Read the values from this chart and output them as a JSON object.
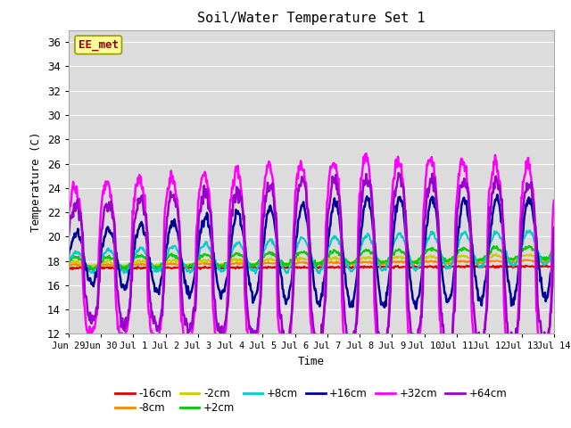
{
  "title": "Soil/Water Temperature Set 1",
  "xlabel": "Time",
  "ylabel": "Temperature (C)",
  "ylim": [
    12,
    37
  ],
  "yticks": [
    12,
    14,
    16,
    18,
    20,
    22,
    24,
    26,
    28,
    30,
    32,
    34,
    36
  ],
  "bg_color": "#dcdcdc",
  "fig_color": "#ffffff",
  "annotation_text": "EE_met",
  "annotation_bg": "#ffff99",
  "annotation_border": "#999900",
  "annotation_text_color": "#990000",
  "series_colors": {
    "-16cm": "#dd0000",
    "-8cm": "#ff8800",
    "-2cm": "#cccc00",
    "+2cm": "#00cc00",
    "+8cm": "#00cccc",
    "+16cm": "#000099",
    "+32cm": "#ff00ff",
    "+64cm": "#9900cc"
  },
  "series_lw": {
    "-16cm": 1.5,
    "-8cm": 1.5,
    "-2cm": 1.5,
    "+2cm": 1.5,
    "+8cm": 1.5,
    "+16cm": 1.8,
    "+32cm": 1.8,
    "+64cm": 1.8
  },
  "x_tick_labels": [
    "Jun 29",
    "Jun 30",
    "Jul 1",
    "Jul 2",
    "Jul 3",
    "Jul 4",
    "Jul 5",
    "Jul 6",
    "Jul 7",
    "Jul 8",
    "Jul 9",
    "Jul 10",
    "Jul 11",
    "Jul 12",
    "Jul 13",
    "Jul 14"
  ],
  "base_temp": 17.7,
  "grid_color": "#ffffff",
  "legend_row1": [
    "-16cm",
    "-8cm",
    "-2cm",
    "+2cm",
    "+8cm",
    "+16cm"
  ],
  "legend_row2": [
    "+32cm",
    "+64cm"
  ]
}
